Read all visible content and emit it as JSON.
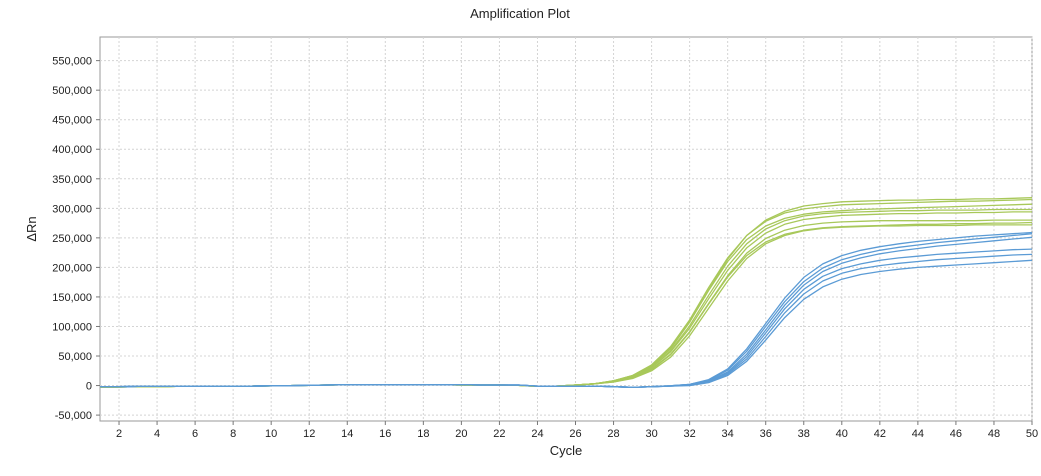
{
  "chart_data": {
    "type": "line",
    "title": "Amplification Plot",
    "xlabel": "Cycle",
    "ylabel": "ΔRn",
    "xlim": [
      1,
      50
    ],
    "ylim": [
      -60000,
      590000
    ],
    "x_ticks": [
      2,
      4,
      6,
      8,
      10,
      12,
      14,
      16,
      18,
      20,
      22,
      24,
      26,
      28,
      30,
      32,
      34,
      36,
      38,
      40,
      42,
      44,
      46,
      48,
      50
    ],
    "y_ticks": [
      -50000,
      0,
      50000,
      100000,
      150000,
      200000,
      250000,
      300000,
      350000,
      400000,
      450000,
      500000,
      550000
    ],
    "y_tick_labels": [
      "-50,000",
      "0",
      "50,000",
      "100,000",
      "150,000",
      "200,000",
      "250,000",
      "300,000",
      "350,000",
      "400,000",
      "450,000",
      "500,000",
      "550,000"
    ],
    "grid": true,
    "colors": {
      "green": "#a8c85a",
      "blue": "#5b9bd5"
    },
    "x": [
      1,
      2,
      3,
      4,
      5,
      6,
      7,
      8,
      9,
      10,
      11,
      12,
      13,
      14,
      15,
      16,
      17,
      18,
      19,
      20,
      21,
      22,
      23,
      24,
      25,
      26,
      27,
      28,
      29,
      30,
      31,
      32,
      33,
      34,
      35,
      36,
      37,
      38,
      39,
      40,
      41,
      42,
      43,
      44,
      45,
      46,
      47,
      48,
      49,
      50
    ],
    "series": [
      {
        "color": "green",
        "values": [
          -3000,
          -2500,
          -2000,
          -2000,
          -1500,
          -1500,
          -1500,
          -1000,
          -1000,
          -500,
          0,
          500,
          1000,
          1500,
          1500,
          1500,
          1500,
          1500,
          1500,
          1000,
          1000,
          1000,
          500,
          -1500,
          -1000,
          1000,
          3000,
          8000,
          17000,
          34000,
          64000,
          108000,
          161000,
          210000,
          247000,
          270000,
          283000,
          290000,
          294000,
          296000,
          298000,
          299000,
          300000,
          301000,
          302000,
          303000,
          304000,
          305000,
          306000,
          307000
        ]
      },
      {
        "color": "green",
        "values": [
          -3000,
          -2500,
          -2000,
          -2000,
          -1500,
          -1500,
          -1500,
          -1000,
          -1000,
          -500,
          0,
          500,
          1000,
          1500,
          1500,
          1500,
          1500,
          1500,
          1500,
          1000,
          1000,
          1000,
          500,
          -1500,
          -1000,
          1000,
          3000,
          7000,
          15000,
          30000,
          57000,
          97000,
          147000,
          195000,
          233000,
          258000,
          273000,
          281000,
          285000,
          288000,
          289000,
          290000,
          291000,
          291000,
          292000,
          292000,
          293000,
          293000,
          294000,
          294000
        ]
      },
      {
        "color": "green",
        "values": [
          -3000,
          -2500,
          -2000,
          -2000,
          -1500,
          -1500,
          -1500,
          -1000,
          -1000,
          -500,
          0,
          500,
          1000,
          1500,
          1500,
          1500,
          1500,
          1500,
          1500,
          1000,
          1000,
          1000,
          500,
          -1500,
          -1000,
          1000,
          3000,
          6000,
          12000,
          25000,
          48000,
          84000,
          131000,
          177000,
          215000,
          240000,
          254000,
          262000,
          266000,
          268000,
          269000,
          270000,
          270000,
          271000,
          271000,
          271000,
          272000,
          272000,
          272000,
          272000
        ]
      },
      {
        "color": "green",
        "values": [
          -3000,
          -2500,
          -2000,
          -2000,
          -1500,
          -1500,
          -1500,
          -1000,
          -1000,
          -500,
          0,
          500,
          1000,
          1500,
          1500,
          1500,
          1500,
          1500,
          1500,
          1000,
          1000,
          1000,
          500,
          -1500,
          -1000,
          1000,
          3000,
          8000,
          16000,
          33000,
          62000,
          107000,
          162000,
          214000,
          254000,
          280000,
          295000,
          304000,
          308000,
          311000,
          312000,
          313000,
          314000,
          314000,
          315000,
          315000,
          316000,
          316000,
          317000,
          318000
        ]
      },
      {
        "color": "green",
        "values": [
          -3000,
          -2500,
          -2000,
          -2000,
          -1500,
          -1500,
          -1500,
          -1000,
          -1000,
          -500,
          0,
          500,
          1000,
          1500,
          1500,
          1500,
          1500,
          1500,
          1500,
          1000,
          1000,
          1000,
          500,
          -1500,
          -1000,
          1000,
          3000,
          7000,
          14000,
          28000,
          53000,
          91000,
          139000,
          186000,
          224000,
          249000,
          263000,
          271000,
          275000,
          277000,
          278000,
          279000,
          279000,
          279000,
          279000,
          279000,
          279000,
          280000,
          280000,
          280000
        ]
      },
      {
        "color": "green",
        "values": [
          -3000,
          -2500,
          -2000,
          -2000,
          -1500,
          -1500,
          -1500,
          -1000,
          -1000,
          -500,
          0,
          500,
          1000,
          1500,
          1500,
          1500,
          1500,
          1500,
          1500,
          1000,
          1000,
          1000,
          500,
          -1500,
          -1000,
          1000,
          3000,
          7000,
          15000,
          31000,
          59000,
          101000,
          153000,
          202000,
          240000,
          265000,
          279000,
          287000,
          291000,
          293000,
          294000,
          295000,
          296000,
          296000,
          297000,
          297000,
          297000,
          298000,
          298000,
          298000
        ]
      },
      {
        "color": "green",
        "values": [
          -3000,
          -2500,
          -2000,
          -2000,
          -1500,
          -1500,
          -1500,
          -1000,
          -1000,
          -500,
          0,
          500,
          1000,
          1500,
          1500,
          1500,
          1500,
          1500,
          1500,
          1000,
          1000,
          1000,
          500,
          -1500,
          -1000,
          1000,
          3000,
          6000,
          13000,
          27000,
          52000,
          90000,
          138000,
          184000,
          220000,
          243000,
          256000,
          263000,
          267000,
          269000,
          270000,
          271000,
          272000,
          273000,
          273000,
          274000,
          274000,
          275000,
          275000,
          276000
        ]
      },
      {
        "color": "green",
        "values": [
          -3000,
          -2500,
          -2000,
          -2000,
          -1500,
          -1500,
          -1500,
          -1000,
          -1000,
          -500,
          0,
          500,
          1000,
          1500,
          1500,
          1500,
          1500,
          1500,
          1500,
          1000,
          1000,
          1000,
          500,
          -1500,
          -1000,
          1000,
          3000,
          8000,
          17000,
          35000,
          66000,
          111000,
          166000,
          216000,
          254000,
          278000,
          292000,
          299000,
          303000,
          306000,
          307000,
          308000,
          309000,
          310000,
          311000,
          312000,
          312000,
          313000,
          314000,
          315000
        ]
      },
      {
        "color": "blue",
        "values": [
          -2000,
          -2000,
          -1500,
          -1500,
          -1500,
          -1500,
          -1000,
          -1000,
          -1000,
          -500,
          0,
          500,
          1000,
          1500,
          1500,
          1500,
          1500,
          1500,
          1500,
          1500,
          1000,
          1000,
          1000,
          -1000,
          -1500,
          -1500,
          -1000,
          -2000,
          -3000,
          -2000,
          -500,
          2000,
          9000,
          26000,
          58000,
          100000,
          142000,
          176000,
          199000,
          213000,
          222000,
          229000,
          234000,
          238000,
          242000,
          245000,
          248000,
          251000,
          254000,
          257000
        ]
      },
      {
        "color": "blue",
        "values": [
          -2000,
          -2000,
          -1500,
          -1500,
          -1500,
          -1500,
          -1000,
          -1000,
          -1000,
          -500,
          0,
          500,
          1000,
          1500,
          1500,
          1500,
          1500,
          1500,
          1500,
          1500,
          1000,
          1000,
          1000,
          -1000,
          -1500,
          -1500,
          -1000,
          -2000,
          -3000,
          -2000,
          -1000,
          1000,
          7000,
          21000,
          49000,
          89000,
          130000,
          163000,
          185000,
          198000,
          206000,
          212000,
          216000,
          219000,
          222000,
          224000,
          226000,
          228000,
          230000,
          231000
        ]
      },
      {
        "color": "blue",
        "values": [
          -2000,
          -2000,
          -1500,
          -1500,
          -1500,
          -1500,
          -1000,
          -1000,
          -1000,
          -500,
          0,
          500,
          1000,
          1500,
          1500,
          1500,
          1500,
          1500,
          1500,
          1500,
          1000,
          1000,
          1000,
          -1000,
          -1500,
          -1500,
          -1000,
          -2000,
          -3000,
          -2000,
          -1000,
          0,
          5000,
          17000,
          41000,
          77000,
          115000,
          146000,
          167000,
          180000,
          188000,
          193000,
          197000,
          200000,
          202000,
          204000,
          206000,
          208000,
          210000,
          212000
        ]
      },
      {
        "color": "blue",
        "values": [
          -2000,
          -2000,
          -1500,
          -1500,
          -1500,
          -1500,
          -1000,
          -1000,
          -1000,
          -500,
          0,
          500,
          1000,
          1500,
          1500,
          1500,
          1500,
          1500,
          1500,
          1500,
          1000,
          1000,
          1000,
          -1000,
          -1500,
          -1500,
          -1000,
          -2000,
          -3000,
          -2000,
          -500,
          2000,
          8000,
          23000,
          53000,
          94000,
          136000,
          170000,
          193000,
          207000,
          216000,
          223000,
          228000,
          232000,
          236000,
          239000,
          242000,
          245000,
          248000,
          251000
        ]
      },
      {
        "color": "blue",
        "values": [
          -2000,
          -2000,
          -1500,
          -1500,
          -1500,
          -1500,
          -1000,
          -1000,
          -1000,
          -500,
          0,
          500,
          1000,
          1500,
          1500,
          1500,
          1500,
          1500,
          1500,
          1500,
          1000,
          1000,
          1000,
          -1000,
          -1500,
          -1500,
          -1000,
          -2000,
          -3000,
          -2000,
          -1000,
          1000,
          6000,
          19000,
          45000,
          83000,
          123000,
          155000,
          177000,
          190000,
          198000,
          203000,
          207000,
          210000,
          213000,
          215000,
          217000,
          219000,
          221000,
          222000
        ]
      },
      {
        "color": "blue",
        "values": [
          -2000,
          -2000,
          -1500,
          -1500,
          -1500,
          -1500,
          -1000,
          -1000,
          -1000,
          -500,
          0,
          500,
          1000,
          1500,
          1500,
          1500,
          1500,
          1500,
          1500,
          1500,
          1000,
          1000,
          1000,
          -1000,
          -1500,
          -1500,
          -1000,
          -2000,
          -3000,
          -2000,
          -500,
          2000,
          10000,
          28000,
          62000,
          105000,
          148000,
          183000,
          206000,
          220000,
          229000,
          235000,
          240000,
          244000,
          247000,
          250000,
          253000,
          255000,
          257000,
          259000
        ]
      }
    ]
  }
}
